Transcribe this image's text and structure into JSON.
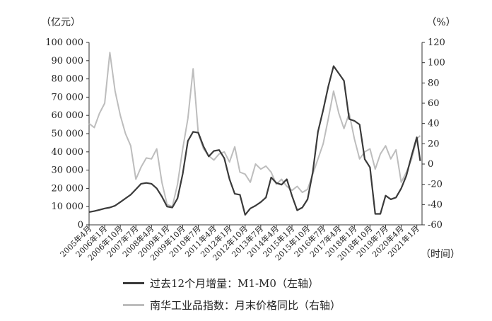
{
  "chart_data": {
    "type": "line",
    "left_axis": {
      "unit_label": "（亿元）",
      "ylim": [
        0,
        100000
      ],
      "tick_labels": [
        "0",
        "10 000",
        "20 000",
        "30 000",
        "40 000",
        "50 000",
        "60 000",
        "70 000",
        "80 000",
        "90 000",
        "100 000"
      ]
    },
    "right_axis": {
      "unit_label": "（%）",
      "ylim": [
        -60,
        120
      ],
      "tick_labels": [
        "-60",
        "-40",
        "-20",
        "0",
        "20",
        "40",
        "60",
        "80",
        "100",
        "120"
      ]
    },
    "x_axis": {
      "unit_label": "（时间）",
      "tick_labels": [
        "2005年4月",
        "2006年1月",
        "2006年10月",
        "2007年7月",
        "2008年4月",
        "2009年1月",
        "2009年10月",
        "2010年7月",
        "2011年4月",
        "2012年1月",
        "2012年10月",
        "2013年7月",
        "2014年4月",
        "2015年1月",
        "2015年10月",
        "2016年7月",
        "2017年4月",
        "2018年1月",
        "2018年10月",
        "2019年7月",
        "2020年4月",
        "2021年1月"
      ]
    },
    "series": [
      {
        "name": "过去12个月增量：M1-M0（左轴）",
        "axis": "left",
        "color": "#3a3a3a",
        "points": [
          [
            "2005-04",
            7000
          ],
          [
            "2005-07",
            7500
          ],
          [
            "2005-10",
            8200
          ],
          [
            "2006-01",
            9000
          ],
          [
            "2006-04",
            9500
          ],
          [
            "2006-07",
            10500
          ],
          [
            "2006-10",
            12500
          ],
          [
            "2007-01",
            14500
          ],
          [
            "2007-04",
            16500
          ],
          [
            "2007-07",
            19500
          ],
          [
            "2007-10",
            22500
          ],
          [
            "2008-01",
            23000
          ],
          [
            "2008-04",
            22500
          ],
          [
            "2008-07",
            20000
          ],
          [
            "2008-10",
            15500
          ],
          [
            "2009-01",
            10000
          ],
          [
            "2009-04",
            9500
          ],
          [
            "2009-07",
            14500
          ],
          [
            "2009-10",
            28000
          ],
          [
            "2010-01",
            46000
          ],
          [
            "2010-04",
            51000
          ],
          [
            "2010-07",
            50500
          ],
          [
            "2010-10",
            43000
          ],
          [
            "2011-01",
            37500
          ],
          [
            "2011-04",
            40500
          ],
          [
            "2011-07",
            41000
          ],
          [
            "2011-10",
            36500
          ],
          [
            "2012-01",
            25000
          ],
          [
            "2012-04",
            17000
          ],
          [
            "2012-07",
            16500
          ],
          [
            "2012-10",
            5500
          ],
          [
            "2013-01",
            9000
          ],
          [
            "2013-04",
            10500
          ],
          [
            "2013-07",
            12500
          ],
          [
            "2013-10",
            15000
          ],
          [
            "2014-01",
            26000
          ],
          [
            "2014-04",
            23000
          ],
          [
            "2014-07",
            22000
          ],
          [
            "2014-10",
            25000
          ],
          [
            "2015-01",
            16000
          ],
          [
            "2015-04",
            8000
          ],
          [
            "2015-07",
            9500
          ],
          [
            "2015-10",
            14000
          ],
          [
            "2016-01",
            29000
          ],
          [
            "2016-04",
            51000
          ],
          [
            "2016-07",
            63000
          ],
          [
            "2016-10",
            76000
          ],
          [
            "2017-01",
            87000
          ],
          [
            "2017-04",
            83000
          ],
          [
            "2017-07",
            79000
          ],
          [
            "2017-10",
            58000
          ],
          [
            "2018-01",
            57000
          ],
          [
            "2018-04",
            55000
          ],
          [
            "2018-07",
            36000
          ],
          [
            "2018-10",
            31500
          ],
          [
            "2019-01",
            6000
          ],
          [
            "2019-04",
            6000
          ],
          [
            "2019-07",
            16000
          ],
          [
            "2019-10",
            14000
          ],
          [
            "2020-01",
            15000
          ],
          [
            "2020-04",
            20000
          ],
          [
            "2020-07",
            27000
          ],
          [
            "2020-10",
            38000
          ],
          [
            "2021-01",
            48000
          ],
          [
            "2021-03",
            35000
          ]
        ]
      },
      {
        "name": "南华工业品指数：月末价格同比（右轴）",
        "axis": "right",
        "color": "#bdbdbd",
        "points": [
          [
            "2005-04",
            40
          ],
          [
            "2005-07",
            36
          ],
          [
            "2005-10",
            50
          ],
          [
            "2006-01",
            60
          ],
          [
            "2006-04",
            110
          ],
          [
            "2006-07",
            72
          ],
          [
            "2006-10",
            48
          ],
          [
            "2007-01",
            30
          ],
          [
            "2007-04",
            18
          ],
          [
            "2007-07",
            -15
          ],
          [
            "2007-10",
            -3
          ],
          [
            "2008-01",
            6
          ],
          [
            "2008-04",
            5
          ],
          [
            "2008-07",
            15
          ],
          [
            "2008-10",
            -18
          ],
          [
            "2009-01",
            -40
          ],
          [
            "2009-04",
            -42
          ],
          [
            "2009-07",
            -20
          ],
          [
            "2009-10",
            15
          ],
          [
            "2010-01",
            45
          ],
          [
            "2010-04",
            94
          ],
          [
            "2010-07",
            30
          ],
          [
            "2010-10",
            15
          ],
          [
            "2011-01",
            8
          ],
          [
            "2011-04",
            4
          ],
          [
            "2011-07",
            10
          ],
          [
            "2011-10",
            12
          ],
          [
            "2012-01",
            2
          ],
          [
            "2012-04",
            17
          ],
          [
            "2012-07",
            -8
          ],
          [
            "2012-10",
            -10
          ],
          [
            "2013-01",
            -18
          ],
          [
            "2013-04",
            0
          ],
          [
            "2013-07",
            -5
          ],
          [
            "2013-10",
            -2
          ],
          [
            "2014-01",
            -8
          ],
          [
            "2014-04",
            -20
          ],
          [
            "2014-07",
            -15
          ],
          [
            "2014-10",
            -22
          ],
          [
            "2015-01",
            -26
          ],
          [
            "2015-04",
            -22
          ],
          [
            "2015-07",
            -28
          ],
          [
            "2015-10",
            -25
          ],
          [
            "2016-01",
            -10
          ],
          [
            "2016-04",
            5
          ],
          [
            "2016-07",
            20
          ],
          [
            "2016-10",
            45
          ],
          [
            "2017-01",
            72
          ],
          [
            "2017-04",
            50
          ],
          [
            "2017-07",
            35
          ],
          [
            "2017-10",
            50
          ],
          [
            "2018-01",
            25
          ],
          [
            "2018-04",
            5
          ],
          [
            "2018-07",
            12
          ],
          [
            "2018-10",
            15
          ],
          [
            "2019-01",
            -5
          ],
          [
            "2019-04",
            10
          ],
          [
            "2019-07",
            18
          ],
          [
            "2019-10",
            5
          ],
          [
            "2020-01",
            14
          ],
          [
            "2020-04",
            -18
          ],
          [
            "2020-07",
            -8
          ],
          [
            "2020-10",
            5
          ],
          [
            "2021-01",
            25
          ],
          [
            "2021-03",
            28
          ]
        ]
      }
    ]
  }
}
